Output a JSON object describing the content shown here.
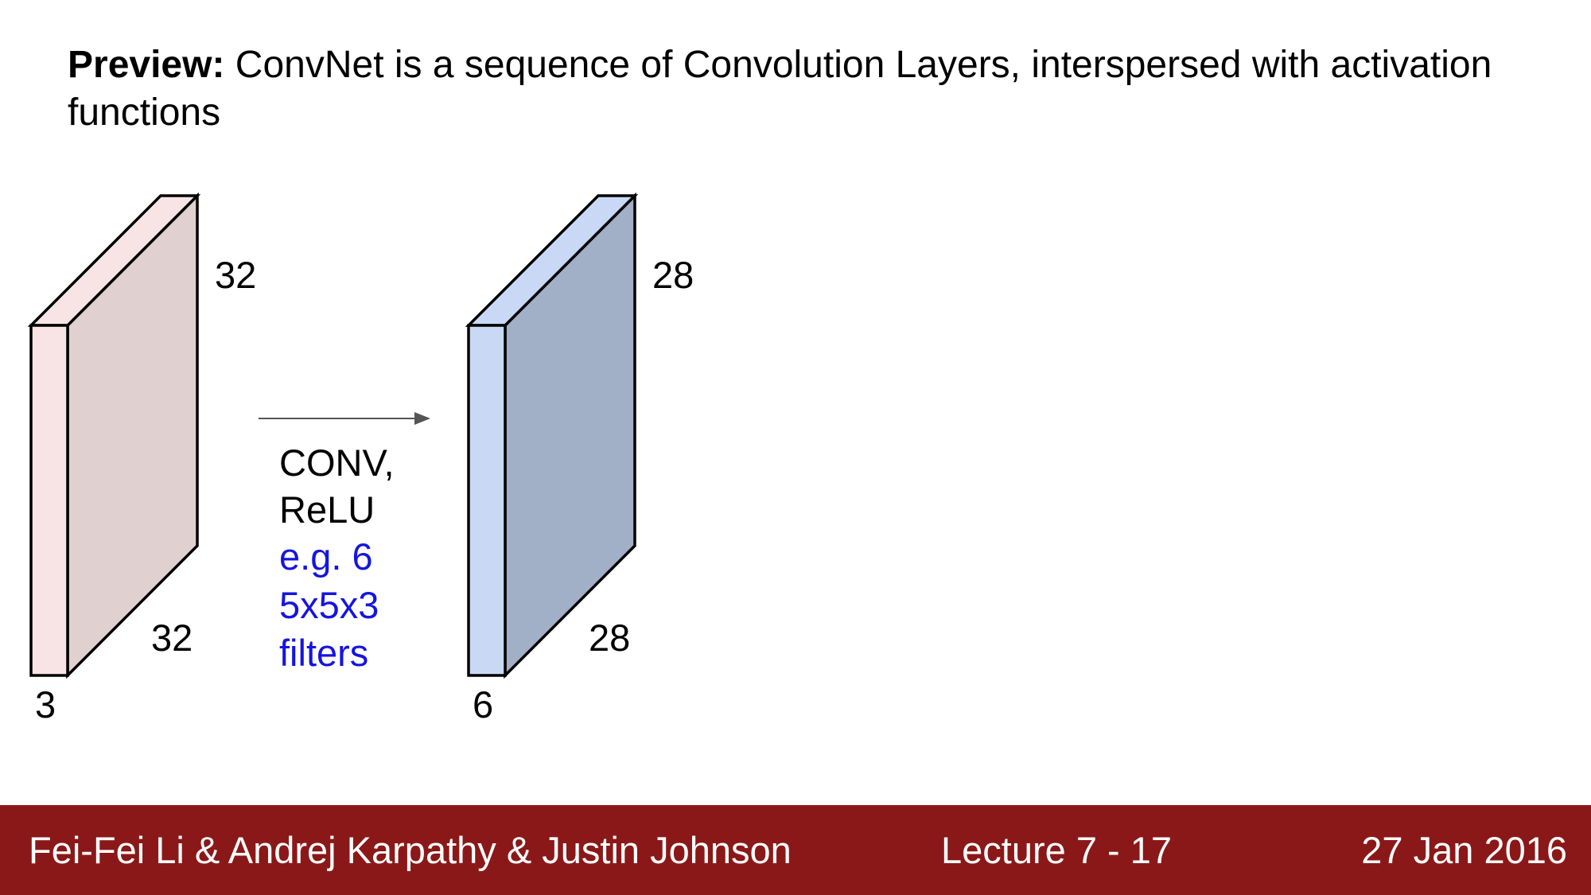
{
  "slide": {
    "title_bold": "Preview:",
    "title_rest": " ConvNet is a sequence of Convolution Layers, interspersed with activation functions"
  },
  "diagram": {
    "input_volume": {
      "height_label": "32",
      "width_label": "32",
      "depth_label": "3",
      "front_color": "#f8e4e4",
      "side_color": "#e0d0d0"
    },
    "output_volume": {
      "height_label": "28",
      "width_label": "28",
      "depth_label": "6",
      "front_color": "#c9d9f5",
      "side_color": "#a1afc7"
    },
    "operation": {
      "line1": "CONV,",
      "line2": "ReLU",
      "line3": "e.g. 6",
      "line4": "5x5x3",
      "line5": "filters",
      "op_color": "#000000",
      "example_color": "#1515e0"
    }
  },
  "footer": {
    "authors": "Fei-Fei Li & Andrej Karpathy & Justin Johnson",
    "lecture": "Lecture 7 - 17",
    "date": "27 Jan 2016",
    "background_color": "#8b1818"
  }
}
